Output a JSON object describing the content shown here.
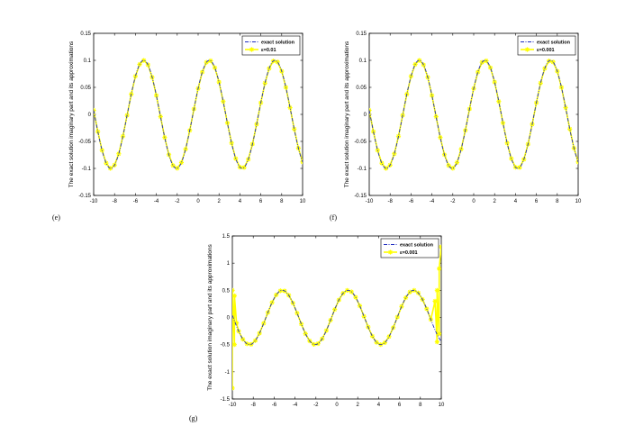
{
  "chart_data": [
    {
      "type": "line",
      "panel_label": "(e)",
      "ylabel": "The exact solution imaginary part and its approximations",
      "xlim": [
        -10,
        10
      ],
      "ylim": [
        -0.15,
        0.15
      ],
      "xticks": [
        "-10",
        "-8",
        "-6",
        "-4",
        "-2",
        "0",
        "2",
        "4",
        "6",
        "8",
        "10"
      ],
      "yticks": [
        "-0.15",
        "-0.1",
        "-0.05",
        "0",
        "0.05",
        "0.1",
        "0.15"
      ],
      "legend_position": "top-right",
      "grid": false,
      "series": [
        {
          "name": "exact solution",
          "style": "dash-dot",
          "color": "#1f2dbf",
          "function": "0.1*sin(x+0.5)"
        },
        {
          "name": "ε=0.01",
          "style": "line-with-star-markers",
          "color": "#ffff00",
          "function": "0.1*sin(x+0.5)",
          "x_from": -10,
          "x_to": 10,
          "x_step": 0.4
        }
      ]
    },
    {
      "type": "line",
      "panel_label": "(f)",
      "ylabel": "The exact solution imaginary part and its approximations",
      "xlim": [
        -10,
        10
      ],
      "ylim": [
        -0.15,
        0.15
      ],
      "xticks": [
        "-10",
        "-8",
        "-6",
        "-4",
        "-2",
        "0",
        "2",
        "4",
        "6",
        "8",
        "10"
      ],
      "yticks": [
        "-0.15",
        "-0.1",
        "-0.05",
        "0",
        "0.05",
        "0.1",
        "0.15"
      ],
      "legend_position": "top-right",
      "grid": false,
      "series": [
        {
          "name": "exact solution",
          "style": "dash-dot",
          "color": "#1f2dbf",
          "function": "0.1*sin(x+0.5)"
        },
        {
          "name": "ε=0.001",
          "style": "line-with-star-markers",
          "color": "#ffff00",
          "function": "0.1*sin(x+0.5)",
          "x_from": -10,
          "x_to": 10,
          "x_step": 0.4
        }
      ]
    },
    {
      "type": "line",
      "panel_label": "(g)",
      "ylabel": "The exact solution imaginary part and its approximations",
      "xlim": [
        -10,
        10
      ],
      "ylim": [
        -1.5,
        1.5
      ],
      "xticks": [
        "-10",
        "-8",
        "-6",
        "-4",
        "-2",
        "0",
        "2",
        "4",
        "6",
        "8",
        "10"
      ],
      "yticks": [
        "-1.5",
        "-1",
        "-0.5",
        "0",
        "0.5",
        "1",
        "1.5"
      ],
      "legend_position": "top-right",
      "grid": false,
      "series": [
        {
          "name": "exact solution",
          "style": "dash-dot",
          "color": "#1f2dbf",
          "function": "0.5*sin(x+0.5)"
        },
        {
          "name": "ε=0.001",
          "style": "line-with-star-markers",
          "color": "#ffff00",
          "function": "0.5*sin(x+0.5)",
          "x_from": -9.4,
          "x_to": 9.2,
          "x_step": 0.4,
          "boundary_points": {
            "left": [
              [
                -10,
                -1.3
              ],
              [
                -10,
                0.5
              ],
              [
                -9.8,
                -0.5
              ],
              [
                -9.8,
                0.4
              ],
              [
                -9.6,
                -0.1
              ]
            ],
            "right": [
              [
                9.4,
                0.3
              ],
              [
                9.6,
                -0.45
              ],
              [
                9.6,
                0.5
              ],
              [
                9.8,
                -0.3
              ],
              [
                9.8,
                0.9
              ],
              [
                10,
                1.3
              ]
            ]
          }
        }
      ]
    }
  ]
}
